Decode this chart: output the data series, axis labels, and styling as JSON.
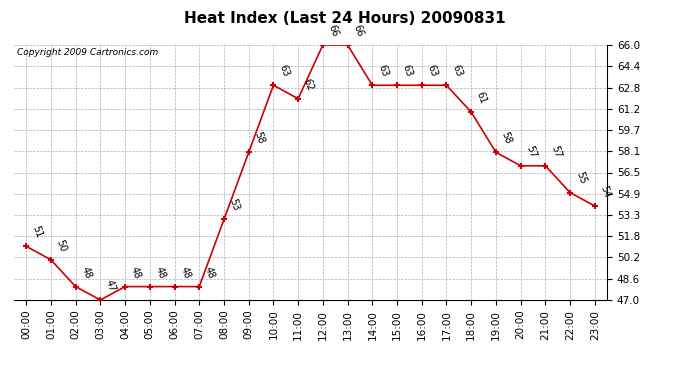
{
  "title": "Heat Index (Last 24 Hours) 20090831",
  "copyright": "Copyright 2009 Cartronics.com",
  "hours": [
    "00:00",
    "01:00",
    "02:00",
    "03:00",
    "04:00",
    "05:00",
    "06:00",
    "07:00",
    "08:00",
    "09:00",
    "10:00",
    "11:00",
    "12:00",
    "13:00",
    "14:00",
    "15:00",
    "16:00",
    "17:00",
    "18:00",
    "19:00",
    "20:00",
    "21:00",
    "22:00",
    "23:00"
  ],
  "values": [
    51,
    50,
    48,
    47,
    48,
    48,
    48,
    48,
    53,
    58,
    63,
    62,
    66,
    66,
    63,
    63,
    63,
    63,
    61,
    58,
    57,
    57,
    55,
    54
  ],
  "labels": [
    "51",
    "50",
    "48",
    "47",
    "48",
    "48",
    "48",
    "48",
    "53",
    "58",
    "63",
    "62",
    "66",
    "66",
    "63",
    "63",
    "63",
    "63",
    "61",
    "58",
    "57",
    "57",
    "55",
    "54"
  ],
  "line_color": "#cc0000",
  "marker_color": "#cc0000",
  "bg_color": "#ffffff",
  "grid_color": "#999999",
  "ylim_min": 47.0,
  "ylim_max": 66.0,
  "yticks": [
    47.0,
    48.6,
    50.2,
    51.8,
    53.3,
    54.9,
    56.5,
    58.1,
    59.7,
    61.2,
    62.8,
    64.4,
    66.0
  ],
  "title_fontsize": 11,
  "label_fontsize": 7,
  "copyright_fontsize": 6.5,
  "tick_fontsize": 7.5
}
